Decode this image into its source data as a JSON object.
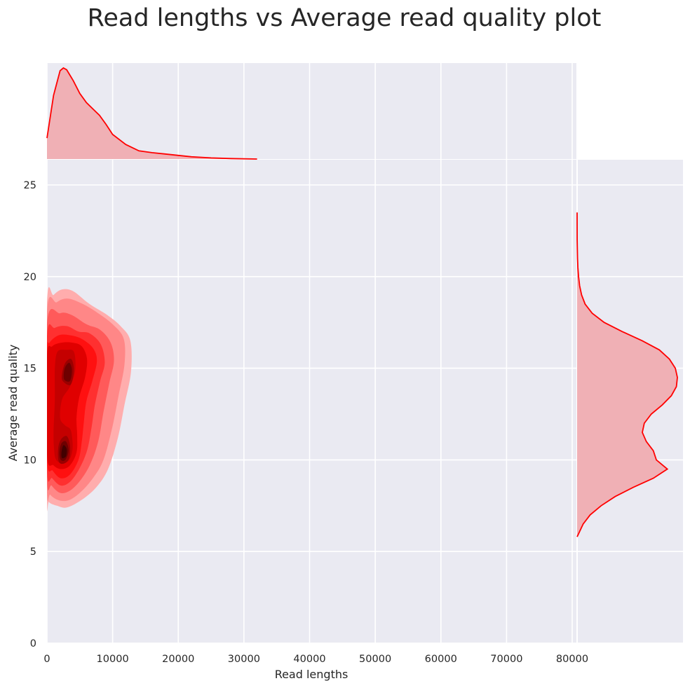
{
  "chart_data": {
    "type": "kde-joint",
    "title": "Read lengths vs Average read quality plot",
    "xlabel": "Read lengths",
    "ylabel": "Average read quality",
    "xlim": [
      0,
      81000
    ],
    "ylim": [
      0,
      26.3
    ],
    "xticks": [
      0,
      10000,
      20000,
      30000,
      40000,
      50000,
      60000,
      70000,
      80000
    ],
    "xtick_labels": [
      "0",
      "10000",
      "20000",
      "30000",
      "40000",
      "50000",
      "60000",
      "70000",
      "80000"
    ],
    "yticks": [
      0,
      5,
      10,
      15,
      20,
      25
    ],
    "ytick_labels": [
      "0",
      "5",
      "10",
      "15",
      "20",
      "25"
    ],
    "grid": true,
    "colors": {
      "background": "#eaeaf2",
      "grid": "#ffffff",
      "line": "#ff0000",
      "fill": "#f0b0b5",
      "levels": [
        "#ffadad",
        "#ff8787",
        "#ff5a5a",
        "#ff3030",
        "#ff1010",
        "#e00000",
        "#c40000",
        "#9a0000",
        "#6e0000",
        "#420000"
      ]
    },
    "marginal_x": {
      "x": [
        0,
        1000,
        2000,
        2500,
        3000,
        4000,
        5000,
        6000,
        7000,
        8000,
        9000,
        10000,
        12000,
        14000,
        16000,
        18000,
        20000,
        22000,
        25000,
        28000,
        32000
      ],
      "density": [
        0.23,
        0.7,
        0.97,
        1.0,
        0.98,
        0.86,
        0.72,
        0.62,
        0.55,
        0.48,
        0.38,
        0.27,
        0.16,
        0.09,
        0.07,
        0.055,
        0.04,
        0.025,
        0.012,
        0.005,
        0.0
      ]
    },
    "marginal_y": {
      "y": [
        5.8,
        6.5,
        7.0,
        7.5,
        8.0,
        8.5,
        9.0,
        9.5,
        10.0,
        10.5,
        11.0,
        11.5,
        12.0,
        12.5,
        13.0,
        13.5,
        14.0,
        14.5,
        15.0,
        15.5,
        16.0,
        16.5,
        17.0,
        17.5,
        18.0,
        18.5,
        19.0,
        19.5,
        20.0,
        20.5,
        21.0,
        22.0,
        23.5
      ],
      "density": [
        0.0,
        0.06,
        0.13,
        0.24,
        0.38,
        0.56,
        0.76,
        0.9,
        0.79,
        0.76,
        0.69,
        0.65,
        0.67,
        0.74,
        0.85,
        0.94,
        0.99,
        1.0,
        0.98,
        0.92,
        0.82,
        0.65,
        0.45,
        0.27,
        0.15,
        0.08,
        0.045,
        0.025,
        0.015,
        0.008,
        0.004,
        0.001,
        0.0
      ]
    },
    "kde_levels": [
      [
        [
          300,
          7.7
        ],
        [
          1500,
          7.5
        ],
        [
          3000,
          7.4
        ],
        [
          5200,
          7.8
        ],
        [
          7500,
          8.5
        ],
        [
          9300,
          9.5
        ],
        [
          10800,
          11.2
        ],
        [
          11800,
          13.0
        ],
        [
          12800,
          14.8
        ],
        [
          12700,
          16.5
        ],
        [
          11200,
          17.3
        ],
        [
          9200,
          17.9
        ],
        [
          6500,
          18.5
        ],
        [
          4000,
          19.2
        ],
        [
          2300,
          19.3
        ],
        [
          1000,
          19.0
        ],
        [
          0,
          18.5
        ],
        [
          0,
          8.1
        ]
      ],
      [
        [
          500,
          8.1
        ],
        [
          1800,
          7.8
        ],
        [
          3300,
          7.8
        ],
        [
          5000,
          8.2
        ],
        [
          7000,
          9.0
        ],
        [
          8600,
          10.0
        ],
        [
          9900,
          11.7
        ],
        [
          10900,
          13.5
        ],
        [
          11800,
          15.2
        ],
        [
          11700,
          16.6
        ],
        [
          10000,
          17.4
        ],
        [
          7800,
          18.0
        ],
        [
          5500,
          18.5
        ],
        [
          3200,
          18.8
        ],
        [
          1500,
          18.6
        ],
        [
          0,
          18.0
        ],
        [
          0,
          8.6
        ]
      ],
      [
        [
          700,
          8.6
        ],
        [
          2000,
          8.2
        ],
        [
          3400,
          8.3
        ],
        [
          4900,
          8.8
        ],
        [
          6500,
          9.7
        ],
        [
          7800,
          11.0
        ],
        [
          8600,
          12.6
        ],
        [
          9500,
          14.2
        ],
        [
          10200,
          15.4
        ],
        [
          9700,
          16.4
        ],
        [
          8100,
          17.1
        ],
        [
          6000,
          17.4
        ],
        [
          3800,
          17.9
        ],
        [
          2000,
          18.0
        ],
        [
          0,
          17.4
        ],
        [
          0,
          9.1
        ]
      ],
      [
        [
          800,
          9.0
        ],
        [
          2100,
          8.6
        ],
        [
          3500,
          8.8
        ],
        [
          4900,
          9.5
        ],
        [
          6100,
          10.5
        ],
        [
          6800,
          11.8
        ],
        [
          7300,
          13.0
        ],
        [
          8100,
          14.3
        ],
        [
          8800,
          15.3
        ],
        [
          8200,
          16.3
        ],
        [
          6500,
          16.9
        ],
        [
          4800,
          17.0
        ],
        [
          3000,
          17.3
        ],
        [
          1200,
          17.2
        ],
        [
          0,
          16.7
        ],
        [
          0,
          9.5
        ]
      ],
      [
        [
          900,
          9.4
        ],
        [
          2100,
          9.0
        ],
        [
          3500,
          9.2
        ],
        [
          4800,
          10.0
        ],
        [
          5300,
          11.0
        ],
        [
          5600,
          12.0
        ],
        [
          6000,
          13.2
        ],
        [
          6900,
          14.3
        ],
        [
          7600,
          15.4
        ],
        [
          7000,
          16.1
        ],
        [
          5300,
          16.6
        ],
        [
          3500,
          16.8
        ],
        [
          1800,
          16.8
        ],
        [
          400,
          16.4
        ],
        [
          0,
          15.8
        ],
        [
          0,
          10.0
        ]
      ],
      [
        [
          1000,
          9.7
        ],
        [
          2200,
          9.5
        ],
        [
          3500,
          9.7
        ],
        [
          4500,
          10.4
        ],
        [
          4600,
          11.3
        ],
        [
          4500,
          12.3
        ],
        [
          4900,
          13.4
        ],
        [
          5800,
          14.5
        ],
        [
          6100,
          15.5
        ],
        [
          5300,
          16.2
        ],
        [
          3800,
          16.4
        ],
        [
          2300,
          16.4
        ],
        [
          800,
          16.2
        ],
        [
          0,
          15.6
        ],
        [
          0,
          10.3
        ]
      ],
      [
        [
          1400,
          10.0
        ],
        [
          2400,
          9.8
        ],
        [
          3400,
          10.0
        ],
        [
          3900,
          10.6
        ],
        [
          3800,
          11.3
        ],
        [
          3500,
          11.7
        ],
        [
          2700,
          11.9
        ],
        [
          2000,
          12.3
        ],
        [
          2300,
          13.3
        ],
        [
          3500,
          14.0
        ],
        [
          4300,
          14.9
        ],
        [
          4100,
          15.9
        ],
        [
          2900,
          16.0
        ],
        [
          1600,
          15.9
        ],
        [
          1200,
          15.0
        ],
        [
          1200,
          13.3
        ],
        [
          1000,
          11.5
        ],
        [
          1100,
          10.5
        ]
      ],
      [
        [
          1800,
          9.9
        ],
        [
          2600,
          9.8
        ],
        [
          3400,
          10.1
        ],
        [
          3500,
          10.8
        ],
        [
          3000,
          11.3
        ],
        [
          2100,
          11.1
        ],
        [
          1700,
          10.6
        ]
      ],
      [
        [
          2100,
          10.0
        ],
        [
          2800,
          10.0
        ],
        [
          3300,
          10.5
        ],
        [
          2900,
          11.0
        ],
        [
          2200,
          10.9
        ],
        [
          1900,
          10.4
        ]
      ],
      [
        [
          2300,
          10.1
        ],
        [
          2900,
          10.2
        ],
        [
          3000,
          10.6
        ],
        [
          2500,
          10.8
        ],
        [
          2200,
          10.4
        ]
      ]
    ],
    "kde_peak2_levels": [
      [
        [
          2400,
          14.3
        ],
        [
          3600,
          14.1
        ],
        [
          4100,
          14.9
        ],
        [
          3700,
          15.5
        ],
        [
          2800,
          15.3
        ],
        [
          2300,
          14.7
        ]
      ],
      [
        [
          2600,
          14.4
        ],
        [
          3500,
          14.3
        ],
        [
          3800,
          14.9
        ],
        [
          3400,
          15.3
        ],
        [
          2700,
          15.0
        ]
      ]
    ]
  }
}
